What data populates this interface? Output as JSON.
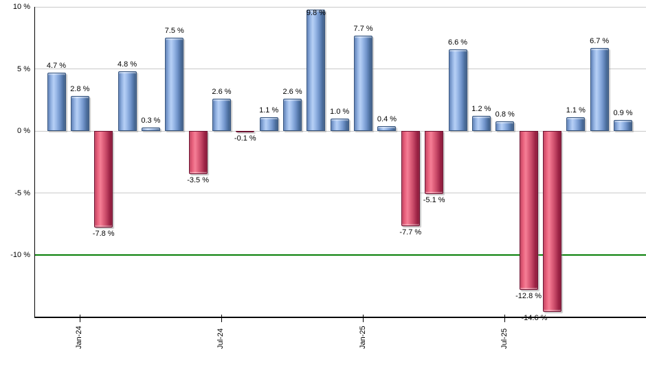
{
  "chart_data": {
    "type": "bar",
    "title": "",
    "unit": "%",
    "values": [
      4.7,
      2.8,
      -7.8,
      4.8,
      0.3,
      7.5,
      -3.5,
      2.6,
      -0.1,
      1.1,
      2.6,
      9.8,
      1.0,
      7.7,
      0.4,
      -7.7,
      -5.1,
      6.6,
      1.2,
      0.8,
      -12.8,
      -14.6,
      1.1,
      6.7,
      0.9
    ],
    "bar_labels": [
      "4.7 %",
      "2.8 %",
      "-7.8 %",
      "4.8 %",
      "0.3 %",
      "7.5 %",
      "-3.5 %",
      "2.6 %",
      "-0.1 %",
      "1.1 %",
      "2.6 %",
      "9.8 %",
      "1.0 %",
      "7.7 %",
      "0.4 %",
      "-7.7 %",
      "-5.1 %",
      "6.6 %",
      "1.2 %",
      "0.8 %",
      "-12.8 %",
      "-14.6 %",
      "1.1 %",
      "6.7 %",
      "0.9 %"
    ],
    "x_ticks": [
      {
        "label": "Jan-24",
        "bar_index": 1
      },
      {
        "label": "Jul-24",
        "bar_index": 7
      },
      {
        "label": "Jan-25",
        "bar_index": 13
      },
      {
        "label": "Jul-25",
        "bar_index": 19
      }
    ],
    "y_ticks": [
      {
        "label": "10 %",
        "value": 10
      },
      {
        "label": "5 %",
        "value": 5
      },
      {
        "label": "0 %",
        "value": 0
      },
      {
        "label": "-5 %",
        "value": -5
      },
      {
        "label": "-10 %",
        "value": -10
      }
    ],
    "ylim": [
      -15.1,
      10
    ],
    "grid": true,
    "legend": false,
    "legend_position": "none",
    "reference_line": {
      "value": -10,
      "color": "#067d06"
    },
    "colors": {
      "positive_fill_light": "#b7d0f6",
      "positive_fill_dark": "#415f84",
      "positive_border": "#35547e",
      "negative_fill_light": "#f57f96",
      "negative_fill_dark": "#8c1c3c",
      "negative_border": "#6d1130",
      "grid": "#c9c9c9",
      "axis": "#000000"
    },
    "label_dx": {
      "21": -26
    }
  }
}
